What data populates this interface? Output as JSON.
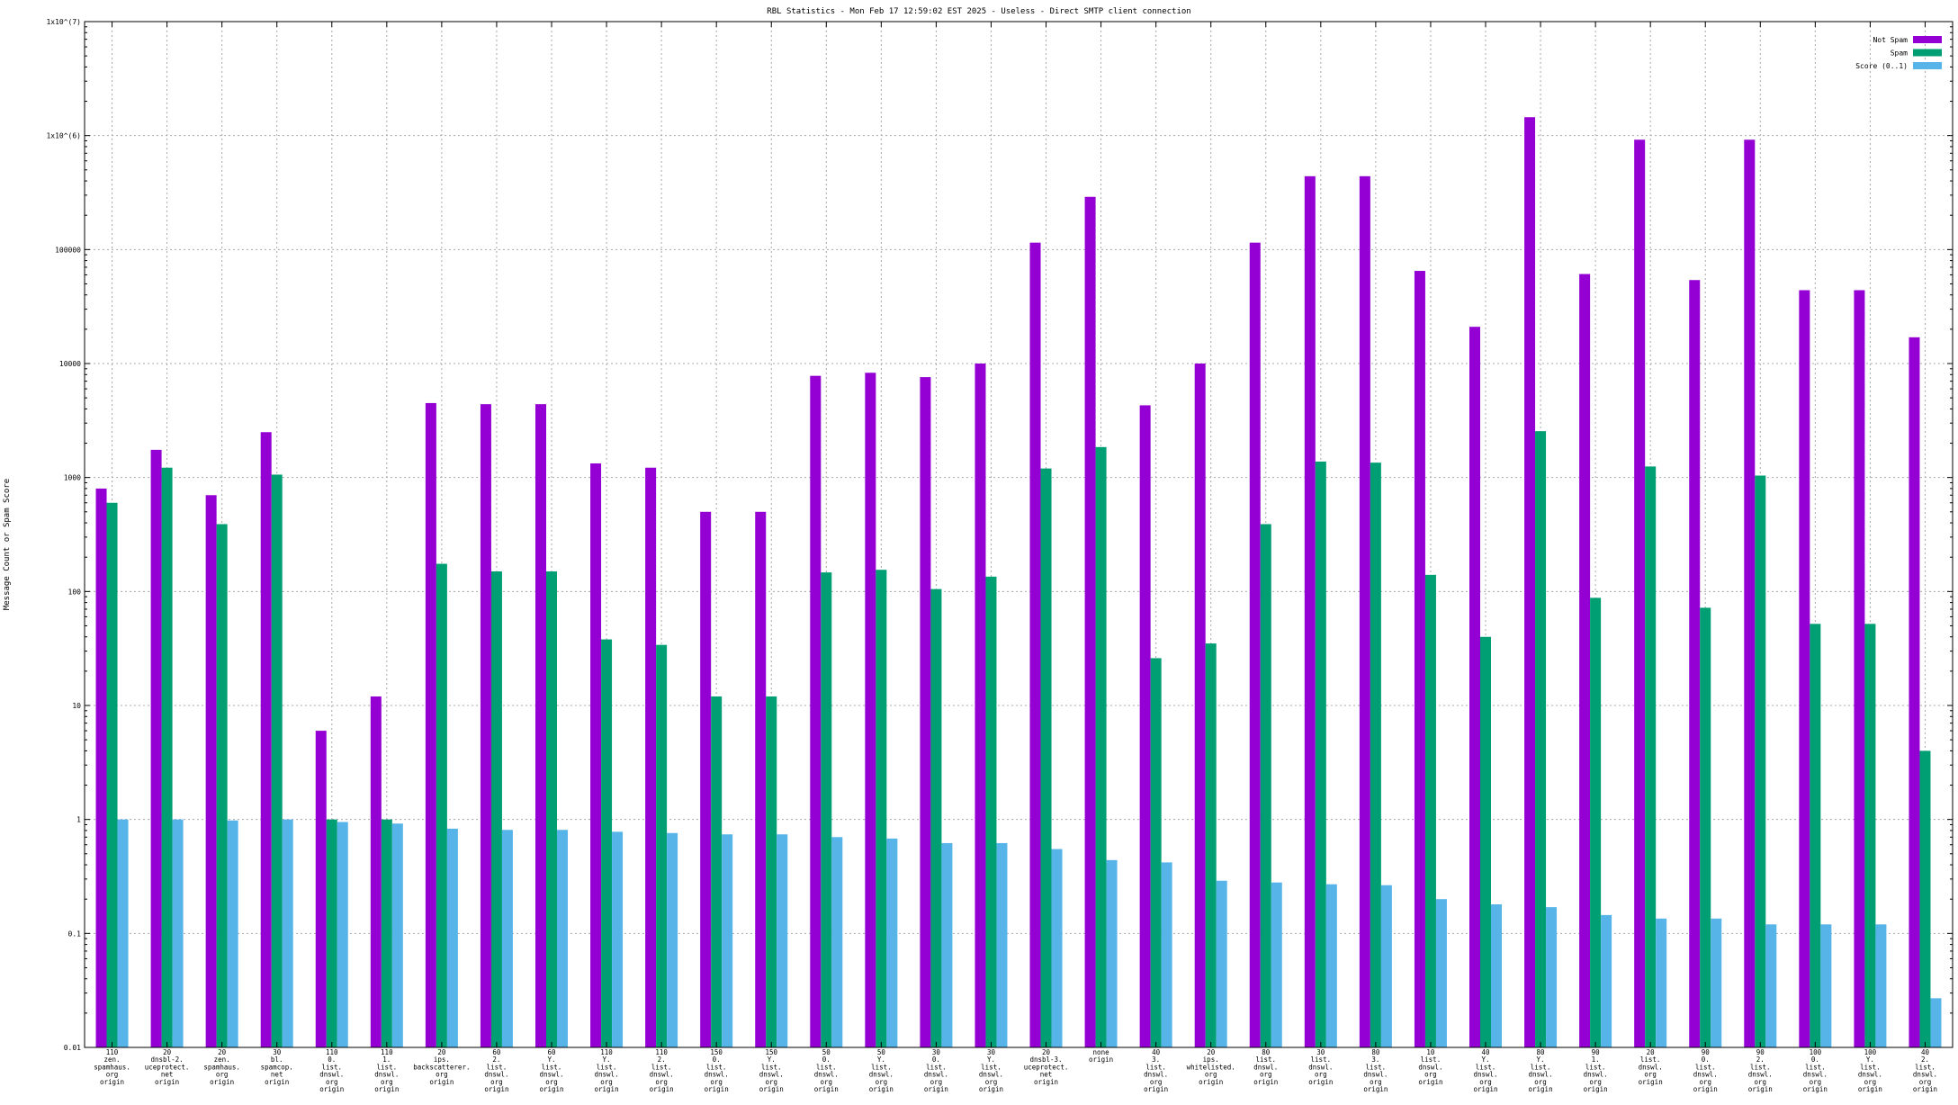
{
  "chart_data": {
    "type": "bar",
    "title": "RBL Statistics - Mon Feb 17 12:59:02 EST 2025 - Useless - Direct SMTP client connection",
    "xlabel": "",
    "ylabel": "Message Count or Spam Score",
    "yscale": "log",
    "ylim": [
      0.01,
      10000000
    ],
    "y_ticks": [
      {
        "value": 0.01,
        "label": "0.01"
      },
      {
        "value": 0.1,
        "label": "0.1"
      },
      {
        "value": 1,
        "label": "1"
      },
      {
        "value": 10,
        "label": "10"
      },
      {
        "value": 100,
        "label": "100"
      },
      {
        "value": 1000,
        "label": "1000"
      },
      {
        "value": 10000,
        "label": "10000"
      },
      {
        "value": 100000,
        "label": "100000"
      },
      {
        "value": 1000000,
        "label": "1x10^(6)"
      },
      {
        "value": 10000000,
        "label": "1x10^(7)"
      }
    ],
    "grid": true,
    "legend_position": "top-right",
    "categories": [
      [
        "110",
        "zen.",
        "spamhaus.",
        "org",
        "origin"
      ],
      [
        "20",
        "dnsbl-2.",
        "uceprotect.",
        "net",
        "origin"
      ],
      [
        "20",
        "zen.",
        "spamhaus.",
        "org",
        "origin"
      ],
      [
        "30",
        "bl.",
        "spamcop.",
        "net",
        "origin"
      ],
      [
        "110",
        "0.",
        "list.",
        "dnswl.",
        "org",
        "origin"
      ],
      [
        "110",
        "1.",
        "list.",
        "dnswl.",
        "org",
        "origin"
      ],
      [
        "20",
        "ips.",
        "backscatterer.",
        "org",
        "origin"
      ],
      [
        "60",
        "2.",
        "list.",
        "dnswl.",
        "org",
        "origin"
      ],
      [
        "60",
        "Y.",
        "list.",
        "dnswl.",
        "org",
        "origin"
      ],
      [
        "110",
        "Y.",
        "list.",
        "dnswl.",
        "org",
        "origin"
      ],
      [
        "110",
        "2.",
        "list.",
        "dnswl.",
        "org",
        "origin"
      ],
      [
        "150",
        "0.",
        "list.",
        "dnswl.",
        "org",
        "origin"
      ],
      [
        "150",
        "Y.",
        "list.",
        "dnswl.",
        "org",
        "origin"
      ],
      [
        "50",
        "0.",
        "list.",
        "dnswl.",
        "org",
        "origin"
      ],
      [
        "50",
        "Y.",
        "list.",
        "dnswl.",
        "org",
        "origin"
      ],
      [
        "30",
        "0.",
        "list.",
        "dnswl.",
        "org",
        "origin"
      ],
      [
        "30",
        "Y.",
        "list.",
        "dnswl.",
        "org",
        "origin"
      ],
      [
        "20",
        "dnsbl-3.",
        "uceprotect.",
        "net",
        "origin"
      ],
      [
        "none",
        "origin"
      ],
      [
        "40",
        "3.",
        "list.",
        "dnswl.",
        "org",
        "origin"
      ],
      [
        "20",
        "ips.",
        "whitelisted.",
        "org",
        "origin"
      ],
      [
        "80",
        "list.",
        "dnswl.",
        "org",
        "origin"
      ],
      [
        "30",
        "list.",
        "dnswl.",
        "org",
        "origin"
      ],
      [
        "80",
        "3.",
        "list.",
        "dnswl.",
        "org",
        "origin"
      ],
      [
        "10",
        "list.",
        "dnswl.",
        "org",
        "origin"
      ],
      [
        "40",
        "Y.",
        "list.",
        "dnswl.",
        "org",
        "origin"
      ],
      [
        "80",
        "Y.",
        "list.",
        "dnswl.",
        "org",
        "origin"
      ],
      [
        "90",
        "1.",
        "list.",
        "dnswl.",
        "org",
        "origin"
      ],
      [
        "20",
        "list.",
        "dnswl.",
        "org",
        "origin"
      ],
      [
        "90",
        "0.",
        "list.",
        "dnswl.",
        "org",
        "origin"
      ],
      [
        "90",
        "2.",
        "list.",
        "dnswl.",
        "org",
        "origin"
      ],
      [
        "100",
        "0.",
        "list.",
        "dnswl.",
        "org",
        "origin"
      ],
      [
        "100",
        "Y.",
        "list.",
        "dnswl.",
        "org",
        "origin"
      ],
      [
        "40",
        "2.",
        "list.",
        "dnswl.",
        "org",
        "origin"
      ]
    ],
    "series": [
      {
        "name": "Not Spam",
        "color": "#9400d3",
        "values": [
          800,
          1750,
          700,
          2500,
          6,
          12,
          4500,
          4400,
          4400,
          1330,
          1220,
          500,
          500,
          7800,
          8300,
          7600,
          10000,
          115000,
          290000,
          4300,
          10000,
          115000,
          440000,
          440000,
          65000,
          21000,
          1450000,
          61000,
          920000,
          54000,
          920000,
          44000,
          44000,
          17000
        ]
      },
      {
        "name": "Spam",
        "color": "#009e73",
        "values": [
          600,
          1220,
          390,
          1060,
          1,
          1,
          175,
          150,
          150,
          38,
          34,
          12,
          12,
          147,
          155,
          105,
          135,
          1200,
          1850,
          26,
          35,
          390,
          1380,
          1350,
          140,
          40,
          2550,
          88,
          1250,
          72,
          1040,
          52,
          52,
          4
        ]
      },
      {
        "name": "Score (0..1)",
        "color": "#56b4e9",
        "values": [
          1.0,
          1.0,
          0.98,
          1.0,
          0.95,
          0.92,
          0.83,
          0.81,
          0.81,
          0.78,
          0.76,
          0.74,
          0.74,
          0.7,
          0.68,
          0.62,
          0.62,
          0.55,
          0.44,
          0.42,
          0.29,
          0.28,
          0.27,
          0.265,
          0.2,
          0.18,
          0.17,
          0.145,
          0.135,
          0.135,
          0.12,
          0.12,
          0.12,
          0.027
        ]
      }
    ]
  }
}
